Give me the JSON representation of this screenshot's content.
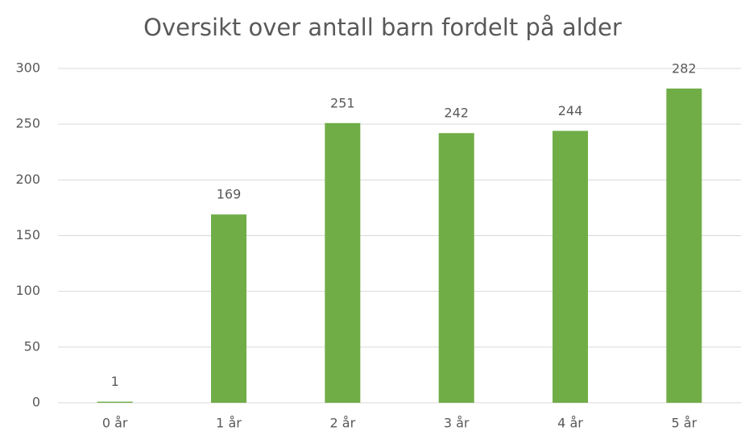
{
  "chart_data": {
    "type": "bar",
    "title": "Oversikt over antall barn fordelt på alder",
    "categories": [
      "0 år",
      "1 år",
      "2 år",
      "3 år",
      "4 år",
      "5 år"
    ],
    "values": [
      1,
      169,
      251,
      242,
      244,
      282
    ],
    "color": "#70ad47",
    "ylim": [
      0,
      300
    ],
    "yticks": [
      0,
      50,
      100,
      150,
      200,
      250,
      300
    ],
    "grid": true,
    "data_labels": true
  }
}
